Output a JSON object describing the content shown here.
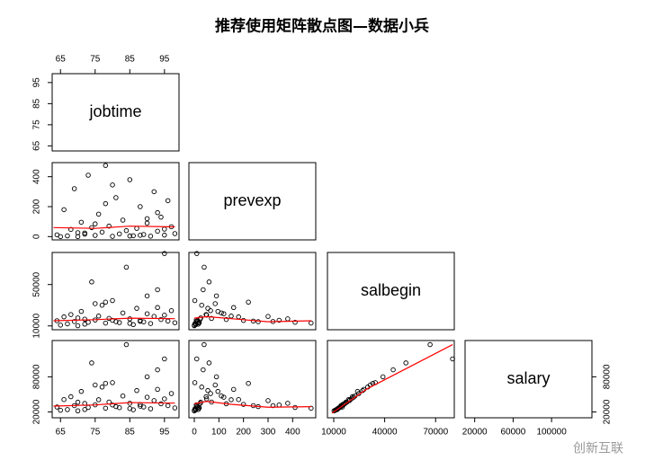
{
  "chart_data": {
    "type": "scatter_matrix",
    "title": "推荐使用矩阵散点图—数据小兵",
    "watermark": "创新互联",
    "point_color": "#000000",
    "smooth_color": "#ff0000",
    "variables": [
      {
        "name": "jobtime",
        "lim": [
          62.6,
          99.2
        ],
        "xticks": [
          65,
          75,
          85,
          95
        ],
        "yticks": [
          65,
          75,
          85,
          95
        ],
        "values": [
          64,
          66,
          67,
          68,
          69,
          70,
          71,
          72,
          73,
          74,
          75,
          76,
          77,
          78,
          79,
          80,
          81,
          82,
          83,
          84,
          85,
          86,
          87,
          88,
          89,
          90,
          91,
          92,
          93,
          94,
          95,
          96,
          97,
          98,
          65,
          70,
          75,
          80,
          85,
          90,
          95,
          72,
          78,
          88,
          93
        ]
      },
      {
        "name": "prevexp",
        "lim": [
          -22,
          494
        ],
        "xticks": [
          0,
          100,
          200,
          300,
          400
        ],
        "yticks": [
          0,
          200,
          400
        ],
        "values": [
          12,
          180,
          5,
          48,
          320,
          0,
          96,
          24,
          410,
          60,
          8,
          150,
          30,
          475,
          70,
          2,
          260,
          18,
          110,
          40,
          380,
          6,
          55,
          200,
          14,
          90,
          3,
          300,
          36,
          130,
          10,
          240,
          66,
          20,
          0,
          26,
          85,
          345,
          4,
          120,
          50,
          16,
          220,
          9,
          160
        ]
      },
      {
        "name": "salbegin",
        "lim": [
          6300,
          81000
        ],
        "xticks": [
          10000,
          40000,
          70000
        ],
        "yticks": [
          10000,
          50000
        ],
        "values": [
          15000,
          18750,
          12000,
          21000,
          14250,
          10200,
          24000,
          16500,
          13500,
          52500,
          15750,
          19500,
          30000,
          12750,
          17250,
          34500,
          14100,
          13200,
          22500,
          66750,
          16800,
          11250,
          27000,
          15300,
          13950,
          39000,
          12300,
          19200,
          45000,
          16200,
          79980,
          14700,
          24750,
          13050,
          10800,
          17700,
          31500,
          15450,
          12450,
          21750,
          20400,
          11700,
          33000,
          14400,
          27750
        ]
      },
      {
        "name": "salary",
        "lim": [
          10000,
          142000
        ],
        "xticks": [
          20000,
          60000,
          100000
        ],
        "yticks": [
          20000,
          80000
        ],
        "values": [
          28350,
          41100,
          24000,
          46000,
          30750,
          21900,
          55000,
          34500,
          27600,
          103750,
          32100,
          40800,
          62500,
          26400,
          36900,
          70000,
          29100,
          27300,
          47250,
          135000,
          34800,
          23700,
          56550,
          32850,
          28500,
          80000,
          25350,
          39300,
          92000,
          33900,
          110625,
          30750,
          51450,
          26850,
          22800,
          36600,
          66000,
          31950,
          25800,
          45150,
          42300,
          24150,
          68750,
          29850,
          58500
        ]
      }
    ],
    "smooths": [
      {
        "x": [
          63,
          75,
          85,
          98
        ],
        "y": [
          60,
          55,
          70,
          65
        ]
      },
      {
        "x": [
          63,
          75,
          85,
          98
        ],
        "y": [
          15000,
          16000,
          17500,
          17000
        ]
      },
      {
        "x": [
          0,
          50,
          150,
          300,
          476
        ],
        "y": [
          17500,
          19000,
          17000,
          14000,
          15000
        ]
      },
      {
        "x": [
          63,
          75,
          85,
          98
        ],
        "y": [
          30000,
          32000,
          36000,
          35000
        ]
      },
      {
        "x": [
          0,
          50,
          150,
          300,
          476
        ],
        "y": [
          34000,
          38000,
          33000,
          28000,
          29000
        ]
      },
      {
        "x": [
          9000,
          30000,
          80000
        ],
        "y": [
          18000,
          60000,
          135000
        ]
      }
    ]
  }
}
